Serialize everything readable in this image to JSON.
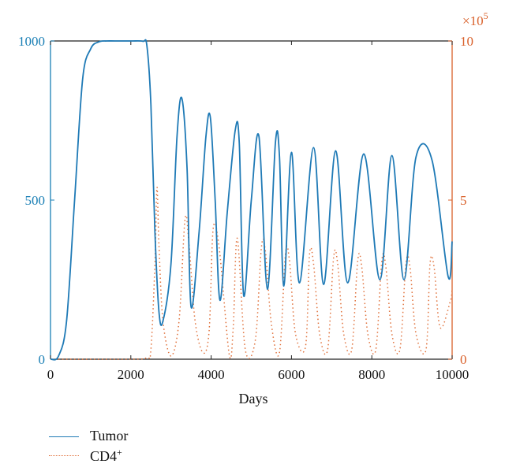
{
  "chart_data": {
    "type": "line",
    "xlabel": "Days",
    "xlim": [
      0,
      10000
    ],
    "x_ticks": [
      "0",
      "2000",
      "4000",
      "6000",
      "8000",
      "10000"
    ],
    "left_axis": {
      "ylim": [
        0,
        1000
      ],
      "ticks": [
        "0",
        "500",
        "1000"
      ],
      "color": "#1a7fb5"
    },
    "right_axis": {
      "ylim": [
        0,
        10
      ],
      "ticks": [
        "0",
        "5",
        "10"
      ],
      "multiplier_base": "×10",
      "multiplier_exp": "5",
      "color": "#d9602a"
    },
    "series": [
      {
        "name": "Tumor",
        "axis": "left",
        "style": "solid",
        "color": "#1f7ab6",
        "x": [
          0,
          200,
          400,
          600,
          800,
          1000,
          1200,
          1400,
          1600,
          2000,
          2300,
          2400,
          2500,
          2600,
          2700,
          2800,
          3000,
          3150,
          3270,
          3400,
          3500,
          3700,
          3870,
          3980,
          4100,
          4220,
          4400,
          4600,
          4700,
          4810,
          5000,
          5190,
          5400,
          5600,
          5700,
          5810,
          6000,
          6200,
          6550,
          6800,
          7100,
          7400,
          7800,
          8200,
          8500,
          8800,
          9100,
          9500,
          9900,
          10000
        ],
        "y": [
          0,
          10,
          120,
          500,
          880,
          975,
          997,
          1000,
          1000,
          1000,
          999,
          985,
          800,
          400,
          150,
          120,
          300,
          700,
          820,
          600,
          165,
          400,
          700,
          760,
          500,
          185,
          460,
          720,
          680,
          200,
          500,
          700,
          220,
          680,
          640,
          230,
          650,
          240,
          665,
          235,
          655,
          240,
          645,
          250,
          640,
          250,
          635,
          625,
          260,
          370
        ]
      },
      {
        "name": "CD4+",
        "axis": "right",
        "style": "dotted",
        "color": "#e0703a",
        "x": [
          0,
          2000,
          2400,
          2500,
          2600,
          2650,
          2700,
          2800,
          3000,
          3200,
          3350,
          3450,
          3600,
          3800,
          3950,
          4050,
          4200,
          4450,
          4550,
          4650,
          4850,
          5100,
          5250,
          5350,
          5500,
          5700,
          5850,
          5950,
          6100,
          6350,
          6450,
          6550,
          6700,
          6900,
          7050,
          7150,
          7300,
          7500,
          7650,
          7750,
          7900,
          8100,
          8250,
          8350,
          8500,
          8700,
          8850,
          8950,
          9100,
          9350,
          9450,
          9550,
          9700,
          9950,
          10000
        ],
        "y": [
          0,
          0,
          0.05,
          0.3,
          3.0,
          5.4,
          3.6,
          1.2,
          0.1,
          1.2,
          4.4,
          3.6,
          1.2,
          0.2,
          0.9,
          4.1,
          3.5,
          0.15,
          1.0,
          3.8,
          0.3,
          0.6,
          3.5,
          3.4,
          1.1,
          0.2,
          3.3,
          3.1,
          0.8,
          0.4,
          3.3,
          3.0,
          0.8,
          0.3,
          3.2,
          3.0,
          0.8,
          0.3,
          3.1,
          2.9,
          0.8,
          0.3,
          3.1,
          2.9,
          0.8,
          0.3,
          3.0,
          2.9,
          0.8,
          0.3,
          3.0,
          2.9,
          1.0,
          1.8,
          2.2
        ]
      }
    ],
    "grid": false,
    "legend_position": "bottom-left"
  },
  "legend": {
    "tumor": "Tumor",
    "cd4_base": "CD4",
    "cd4_sup": "+"
  }
}
